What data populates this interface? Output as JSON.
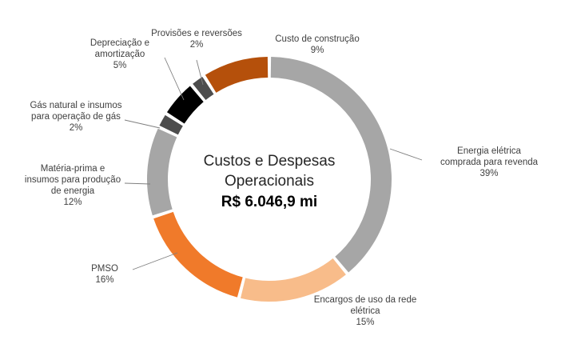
{
  "chart_data": {
    "type": "pie",
    "variant": "donut",
    "center_title_lines": [
      "Custos e Despesas",
      "Operacionais"
    ],
    "center_total": "R$ 6.046,9 mi",
    "slices": [
      {
        "label_lines": [
          "Energia elétrica",
          "comprada para revenda"
        ],
        "value": 39,
        "value_label": "39%",
        "color": "#a6a6a6"
      },
      {
        "label_lines": [
          "Encargos de uso da rede",
          "elétrica"
        ],
        "value": 15,
        "value_label": "15%",
        "color": "#f8bc8a"
      },
      {
        "label_lines": [
          "PMSO"
        ],
        "value": 16,
        "value_label": "16%",
        "color": "#f07a2a"
      },
      {
        "label_lines": [
          "Matéria-prima e",
          "insumos para produção",
          "de energia"
        ],
        "value": 12,
        "value_label": "12%",
        "color": "#a6a6a6"
      },
      {
        "label_lines": [
          "Gás natural e insumos",
          "para operação de gás"
        ],
        "value": 2,
        "value_label": "2%",
        "color": "#4d4d4d"
      },
      {
        "label_lines": [
          "Depreciação e",
          "amortização"
        ],
        "value": 5,
        "value_label": "5%",
        "color": "#000000"
      },
      {
        "label_lines": [
          "Provisões e reversões"
        ],
        "value": 2,
        "value_label": "2%",
        "color": "#4d4d4d"
      },
      {
        "label_lines": [
          "Custo de construção"
        ],
        "value": 9,
        "value_label": "9%",
        "color": "#b5500b"
      }
    ]
  }
}
